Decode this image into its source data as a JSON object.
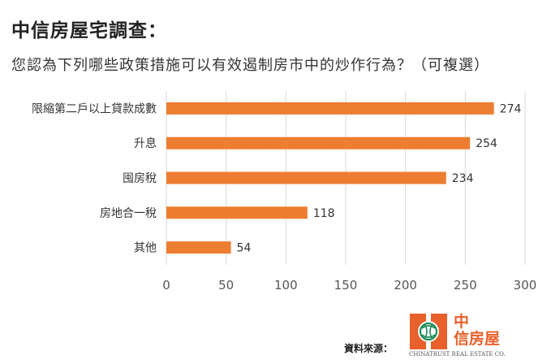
{
  "title": "中信房屋宅調查：",
  "subtitle": "您認為下列哪些政策措施可以有效遏制房市中的炒作行為？（可複選）",
  "source_label": "資料來源：",
  "logo": {
    "line1": "中",
    "line2": "信房屋",
    "english": "CHINATRUST REAL ESTATE CO."
  },
  "colors": {
    "bar": "#ed7d31",
    "grid": "#d9d9d9",
    "brand": "#e8602b"
  },
  "chart_data": {
    "type": "bar",
    "orientation": "horizontal",
    "categories": [
      "限縮第二戶以上貸款成數",
      "升息",
      "囤房稅",
      "房地合一稅",
      "其他"
    ],
    "values": [
      274,
      254,
      234,
      118,
      54
    ],
    "xlim": [
      0,
      300
    ],
    "xticks": [
      0,
      50,
      100,
      150,
      200,
      250,
      300
    ],
    "grid": true,
    "data_labels": true
  }
}
